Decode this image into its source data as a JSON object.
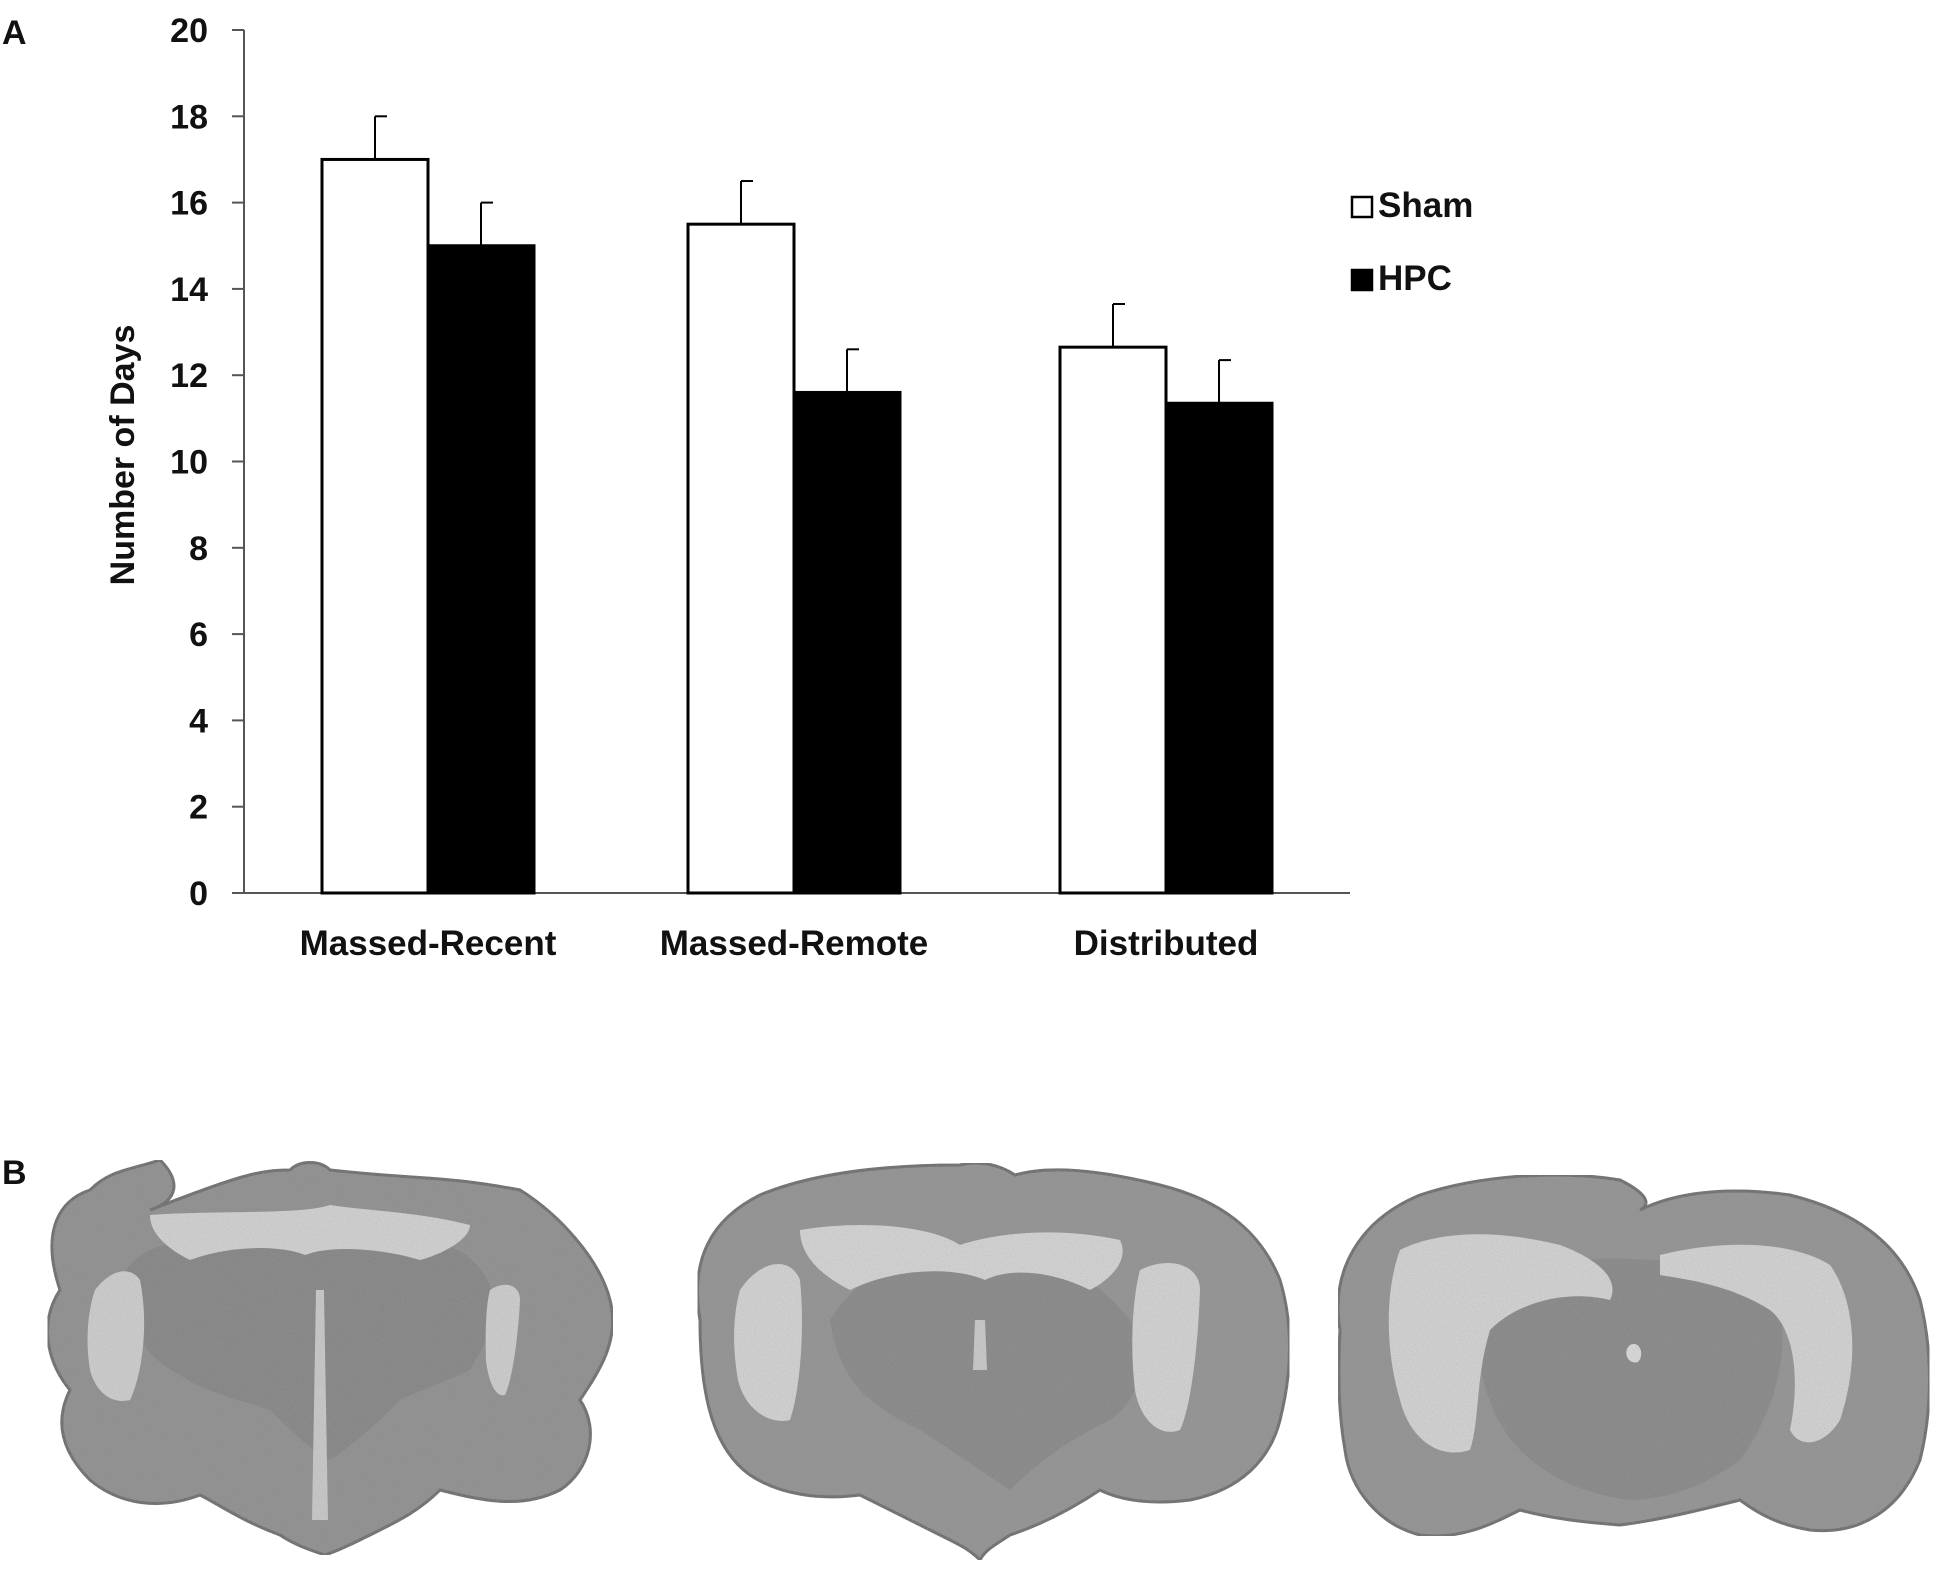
{
  "panel_a_label": "A",
  "panel_b_label": "B",
  "chart_data": {
    "type": "bar",
    "title": "",
    "xlabel": "",
    "ylabel": "Number of Days",
    "categories": [
      "Massed-Recent",
      "Massed-Remote",
      "Distributed"
    ],
    "ylim": [
      0,
      20
    ],
    "yticks": [
      0,
      2,
      4,
      6,
      8,
      10,
      12,
      14,
      16,
      18,
      20
    ],
    "grid": false,
    "legend_position": "right",
    "error_bars": "upper",
    "series": [
      {
        "name": "Sham",
        "values": [
          17.0,
          15.5,
          12.65
        ],
        "errors": [
          1.0,
          1.0,
          1.0
        ],
        "color": "#ffffff"
      },
      {
        "name": "HPC",
        "values": [
          15.0,
          11.6,
          11.35
        ],
        "errors": [
          1.0,
          1.0,
          1.0
        ],
        "color": "#000000"
      }
    ]
  },
  "brain_sections": [
    {
      "name": "section-1"
    },
    {
      "name": "section-2"
    },
    {
      "name": "section-3"
    }
  ]
}
